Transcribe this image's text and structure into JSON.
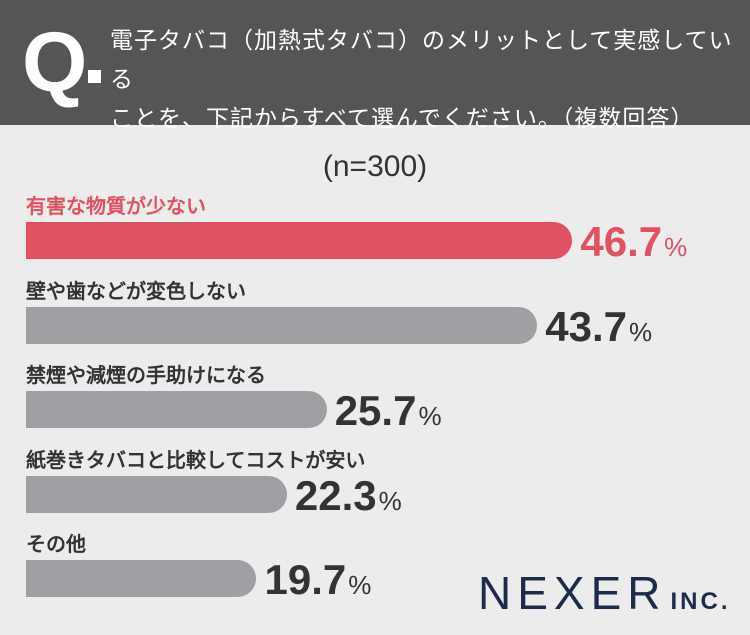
{
  "question": {
    "mark": "Q",
    "line1": "電子タバコ（加熱式タバコ）のメリットとして実感している",
    "line2": "ことを、下記からすべて選んでください。（複数回答）"
  },
  "sample_size": "(n=300)",
  "chart_data": {
    "type": "bar",
    "orientation": "horizontal",
    "title": "電子タバコ（加熱式タバコ）のメリットとして実感していることを、下記からすべて選んでください。（複数回答）",
    "subtitle": "(n=300)",
    "categories": [
      "有害な物質が少ない",
      "壁や歯などが変色しない",
      "禁煙や減煙の手助けになる",
      "紙巻きタバコと比較してコストが安い",
      "その他"
    ],
    "values": [
      46.7,
      43.7,
      25.7,
      22.3,
      19.7
    ],
    "value_labels": [
      "46.7",
      "43.7",
      "25.7",
      "22.3",
      "19.7"
    ],
    "unit": "%",
    "xlim": [
      0,
      100
    ],
    "highlight_index": 0
  },
  "colors": {
    "highlight": "#e05263",
    "bar": "#a0a0a4",
    "header": "#555555"
  },
  "logo": {
    "main": "NEXER",
    "suffix": "INC."
  }
}
